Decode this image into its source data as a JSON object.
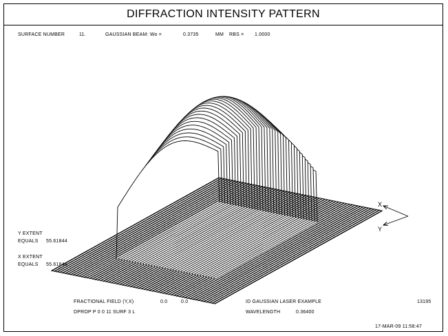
{
  "title": "DIFFRACTION INTENSITY PATTERN",
  "header": {
    "surface_label": "SURFACE NUMBER",
    "surface_value": "11.",
    "beam_label": "GAUSSIAN BEAM: Wo =",
    "beam_value": "0.3735",
    "beam_unit": "MM",
    "rbs_label": "RBS =",
    "rbs_value": "1.0000"
  },
  "extents": {
    "y_label": "Y EXTENT",
    "y_equals": "EQUALS",
    "y_value": "55.61844",
    "x_label": "X EXTENT",
    "x_equals": "EQUALS",
    "x_value": "55.61844"
  },
  "footer": {
    "field_label": "FRACTIONAL FIELD (Y,X)",
    "field_y": "0.0",
    "field_x": "0.0",
    "example_label": "ID GAUSSIAN LASER EXAMPLE",
    "example_number": "13195",
    "dprop_label": "DPROP P 0 0 11 SURF 3 L",
    "wavelength_label": "WAVELENGTH",
    "wavelength_value": "0.36400",
    "timestamp": "17-MAR-09 11:58:47"
  },
  "axes": {
    "x_label": "X",
    "y_label": "Y"
  },
  "chart_data": {
    "type": "surface",
    "title": "DIFFRACTION INTENSITY PATTERN",
    "x_extent": 55.61844,
    "y_extent": 55.61844,
    "x_range": [
      -1,
      1
    ],
    "y_range": [
      -1,
      1
    ],
    "peak_intensity": 1.0,
    "profile": "gaussian",
    "aperture": "square",
    "num_slices": 60,
    "line_color": "#000000",
    "background_color": "#ffffff"
  }
}
